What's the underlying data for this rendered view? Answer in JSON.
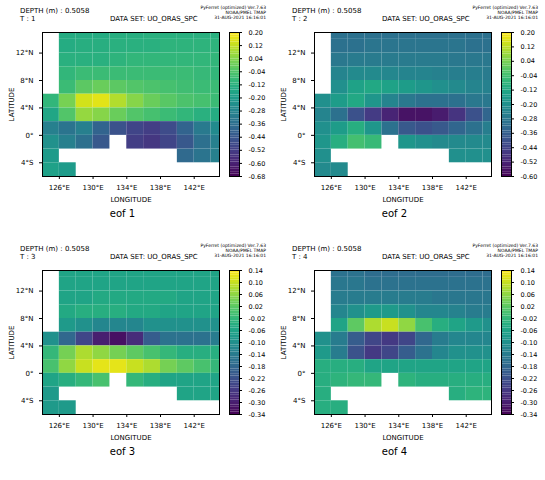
{
  "chart_data": [
    {
      "type": "heatmap",
      "title": "eof 1",
      "color": "viridis",
      "annotations": [
        "DEPTH (m) : 0.5058",
        "T : 1",
        "DATA SET: UO_ORAS_SPC",
        "PyFerret (optimized) Ver.7.63",
        "NOAA/PMEL TMAP",
        "31-AUG-2021 16:16:01"
      ],
      "xlabel": "LONGITUDE",
      "ylabel": "LATITUDE",
      "xlim": [
        124,
        145
      ],
      "ylim": [
        -6,
        15
      ],
      "xticks": [
        {
          "value": 126,
          "label": "126°E"
        },
        {
          "value": 130,
          "label": "130°E"
        },
        {
          "value": 134,
          "label": "134°E"
        },
        {
          "value": 138,
          "label": "138°E"
        },
        {
          "value": 142,
          "label": "142°E"
        }
      ],
      "yticks": [
        {
          "value": -4,
          "label": "4°S"
        },
        {
          "value": 0,
          "label": "0°"
        },
        {
          "value": 4,
          "label": "4°N"
        },
        {
          "value": 8,
          "label": "8°N"
        },
        {
          "value": 12,
          "label": "12°N"
        }
      ],
      "x": [
        125,
        127,
        129,
        131,
        133,
        135,
        137,
        139,
        141,
        143,
        145
      ],
      "y": [
        15,
        13,
        11,
        9,
        7,
        5,
        3,
        1,
        -1,
        -3,
        -5
      ],
      "values": [
        [
          null,
          -0.14,
          -0.14,
          -0.14,
          -0.13,
          -0.13,
          -0.12,
          -0.12,
          -0.12,
          -0.12,
          -0.12
        ],
        [
          null,
          -0.14,
          -0.13,
          -0.13,
          -0.12,
          -0.12,
          -0.12,
          -0.11,
          -0.11,
          -0.11,
          -0.11
        ],
        [
          null,
          -0.12,
          -0.12,
          -0.12,
          -0.11,
          -0.1,
          -0.1,
          -0.1,
          -0.1,
          -0.1,
          -0.1
        ],
        [
          null,
          -0.1,
          -0.08,
          -0.08,
          -0.08,
          -0.08,
          -0.08,
          -0.08,
          -0.08,
          -0.09,
          -0.1
        ],
        [
          null,
          -0.08,
          -0.02,
          0.0,
          -0.02,
          -0.04,
          -0.05,
          -0.06,
          -0.07,
          -0.08,
          -0.08
        ],
        [
          -0.1,
          0.02,
          0.14,
          0.16,
          0.1,
          0.04,
          0.0,
          -0.03,
          -0.05,
          -0.06,
          -0.08
        ],
        [
          -0.16,
          -0.04,
          0.06,
          0.04,
          0.0,
          -0.04,
          -0.06,
          -0.08,
          -0.1,
          -0.12,
          -0.14
        ],
        [
          -0.3,
          -0.34,
          -0.3,
          -0.4,
          -0.46,
          -0.5,
          -0.52,
          -0.48,
          -0.4,
          -0.32,
          -0.26
        ],
        [
          -0.24,
          -0.3,
          -0.36,
          -0.44,
          null,
          -0.52,
          -0.54,
          -0.5,
          -0.44,
          -0.36,
          -0.3
        ],
        [
          -0.2,
          null,
          null,
          null,
          null,
          null,
          null,
          null,
          -0.38,
          -0.34,
          -0.3
        ],
        [
          -0.18,
          -0.2,
          null,
          null,
          null,
          null,
          null,
          null,
          null,
          null,
          null
        ]
      ],
      "colorbar": {
        "range": [
          -0.68,
          0.2
        ],
        "ticks": [
          {
            "value": 0.2,
            "label": "0.20"
          },
          {
            "value": 0.12,
            "label": "0.12"
          },
          {
            "value": 0.04,
            "label": "0.04"
          },
          {
            "value": -0.04,
            "label": "-0.04"
          },
          {
            "value": -0.12,
            "label": "-0.12"
          },
          {
            "value": -0.2,
            "label": "-0.20"
          },
          {
            "value": -0.28,
            "label": "-0.28"
          },
          {
            "value": -0.36,
            "label": "-0.36"
          },
          {
            "value": -0.44,
            "label": "-0.44"
          },
          {
            "value": -0.52,
            "label": "-0.52"
          },
          {
            "value": -0.6,
            "label": "-0.60"
          },
          {
            "value": -0.68,
            "label": "-0.68"
          }
        ]
      }
    },
    {
      "type": "heatmap",
      "title": "eof 2",
      "color": "viridis",
      "annotations": [
        "DEPTH (m) : 0.5058",
        "T : 2",
        "DATA SET: UO_ORAS_SPC",
        "PyFerret (optimized) Ver.7.63",
        "NOAA/PMEL TMAP",
        "31-AUG-2021 16:16:01"
      ],
      "xlabel": "LONGITUDE",
      "ylabel": "LATITUDE",
      "xlim": [
        124,
        145
      ],
      "ylim": [
        -6,
        15
      ],
      "xticks": [
        {
          "value": 126,
          "label": "126°E"
        },
        {
          "value": 130,
          "label": "130°E"
        },
        {
          "value": 134,
          "label": "134°E"
        },
        {
          "value": 138,
          "label": "138°E"
        },
        {
          "value": 142,
          "label": "142°E"
        }
      ],
      "yticks": [
        {
          "value": -4,
          "label": "4°S"
        },
        {
          "value": 0,
          "label": "0°"
        },
        {
          "value": 4,
          "label": "4°N"
        },
        {
          "value": 8,
          "label": "8°N"
        },
        {
          "value": 12,
          "label": "12°N"
        }
      ],
      "x": [
        125,
        127,
        129,
        131,
        133,
        135,
        137,
        139,
        141,
        143,
        145
      ],
      "y": [
        15,
        13,
        11,
        9,
        7,
        5,
        3,
        1,
        -1,
        -3,
        -5
      ],
      "values": [
        [
          null,
          -0.3,
          -0.3,
          -0.3,
          -0.3,
          -0.3,
          -0.3,
          -0.3,
          -0.3,
          -0.3,
          -0.3
        ],
        [
          null,
          -0.3,
          -0.3,
          -0.29,
          -0.29,
          -0.29,
          -0.29,
          -0.29,
          -0.29,
          -0.3,
          -0.3
        ],
        [
          null,
          -0.28,
          -0.27,
          -0.27,
          -0.27,
          -0.27,
          -0.27,
          -0.27,
          -0.28,
          -0.28,
          -0.28
        ],
        [
          null,
          -0.24,
          -0.22,
          -0.22,
          -0.23,
          -0.24,
          -0.24,
          -0.25,
          -0.26,
          -0.26,
          -0.27
        ],
        [
          null,
          -0.2,
          -0.14,
          -0.12,
          -0.14,
          -0.16,
          -0.18,
          -0.2,
          -0.22,
          -0.24,
          -0.25
        ],
        [
          -0.2,
          -0.16,
          -0.12,
          -0.18,
          -0.24,
          -0.28,
          -0.3,
          -0.3,
          -0.3,
          -0.28,
          -0.28
        ],
        [
          -0.24,
          -0.3,
          -0.4,
          -0.46,
          -0.52,
          -0.56,
          -0.56,
          -0.54,
          -0.48,
          -0.4,
          -0.34
        ],
        [
          -0.2,
          -0.16,
          -0.1,
          -0.18,
          -0.3,
          -0.38,
          -0.4,
          -0.38,
          -0.34,
          -0.3,
          -0.26
        ],
        [
          -0.18,
          -0.1,
          -0.04,
          -0.06,
          null,
          -0.18,
          -0.2,
          -0.22,
          -0.22,
          -0.22,
          -0.22
        ],
        [
          -0.2,
          null,
          null,
          null,
          null,
          null,
          null,
          null,
          -0.2,
          -0.2,
          -0.2
        ],
        [
          -0.22,
          -0.22,
          null,
          null,
          null,
          null,
          null,
          null,
          null,
          null,
          null
        ]
      ],
      "colorbar": {
        "range": [
          -0.6,
          0.2
        ],
        "ticks": [
          {
            "value": 0.2,
            "label": "0.20"
          },
          {
            "value": 0.12,
            "label": "0.12"
          },
          {
            "value": 0.04,
            "label": "0.04"
          },
          {
            "value": -0.04,
            "label": "-0.04"
          },
          {
            "value": -0.12,
            "label": "-0.12"
          },
          {
            "value": -0.2,
            "label": "-0.20"
          },
          {
            "value": -0.28,
            "label": "-0.28"
          },
          {
            "value": -0.36,
            "label": "-0.36"
          },
          {
            "value": -0.44,
            "label": "-0.44"
          },
          {
            "value": -0.52,
            "label": "-0.52"
          },
          {
            "value": -0.6,
            "label": "-0.60"
          }
        ]
      }
    },
    {
      "type": "heatmap",
      "title": "eof 3",
      "color": "viridis",
      "annotations": [
        "DEPTH (m) : 0.5058",
        "T : 3",
        "DATA SET: UO_ORAS_SPC",
        "PyFerret (optimized) Ver.7.63",
        "NOAA/PMEL TMAP",
        "31-AUG-2021 16:16:01"
      ],
      "xlabel": "LONGITUDE",
      "ylabel": "LATITUDE",
      "xlim": [
        124,
        145
      ],
      "ylim": [
        -6,
        15
      ],
      "xticks": [
        {
          "value": 126,
          "label": "126°E"
        },
        {
          "value": 130,
          "label": "130°E"
        },
        {
          "value": 134,
          "label": "134°E"
        },
        {
          "value": 138,
          "label": "138°E"
        },
        {
          "value": 142,
          "label": "142°E"
        }
      ],
      "yticks": [
        {
          "value": -4,
          "label": "4°S"
        },
        {
          "value": 0,
          "label": "0°"
        },
        {
          "value": 4,
          "label": "4°N"
        },
        {
          "value": 8,
          "label": "8°N"
        },
        {
          "value": 12,
          "label": "12°N"
        }
      ],
      "x": [
        125,
        127,
        129,
        131,
        133,
        135,
        137,
        139,
        141,
        143,
        145
      ],
      "y": [
        15,
        13,
        11,
        9,
        7,
        5,
        3,
        1,
        -1,
        -3,
        -5
      ],
      "values": [
        [
          null,
          -0.06,
          -0.06,
          -0.06,
          -0.06,
          -0.06,
          -0.06,
          -0.06,
          -0.06,
          -0.06,
          -0.06
        ],
        [
          null,
          -0.06,
          -0.06,
          -0.06,
          -0.06,
          -0.06,
          -0.06,
          -0.06,
          -0.06,
          -0.06,
          -0.06
        ],
        [
          null,
          -0.06,
          -0.06,
          -0.05,
          -0.05,
          -0.05,
          -0.05,
          -0.05,
          -0.06,
          -0.06,
          -0.06
        ],
        [
          null,
          -0.05,
          -0.04,
          -0.04,
          -0.04,
          -0.05,
          -0.05,
          -0.06,
          -0.06,
          -0.06,
          -0.06
        ],
        [
          null,
          -0.08,
          -0.1,
          -0.12,
          -0.12,
          -0.12,
          -0.1,
          -0.1,
          -0.1,
          -0.1,
          -0.1
        ],
        [
          -0.1,
          -0.18,
          -0.24,
          -0.3,
          -0.32,
          -0.28,
          -0.2,
          -0.16,
          -0.16,
          -0.16,
          -0.14
        ],
        [
          -0.02,
          0.04,
          0.08,
          0.06,
          0.04,
          0.02,
          0.0,
          -0.02,
          -0.04,
          -0.04,
          -0.04
        ],
        [
          0.0,
          0.06,
          0.1,
          0.12,
          0.12,
          0.1,
          0.08,
          0.04,
          0.02,
          0.0,
          -0.02
        ],
        [
          -0.06,
          -0.04,
          -0.02,
          0.0,
          null,
          -0.02,
          -0.04,
          -0.06,
          -0.06,
          -0.06,
          -0.06
        ],
        [
          -0.08,
          null,
          null,
          null,
          null,
          null,
          null,
          null,
          -0.06,
          -0.06,
          -0.06
        ],
        [
          -0.08,
          -0.08,
          null,
          null,
          null,
          null,
          null,
          null,
          null,
          null,
          null
        ]
      ],
      "colorbar": {
        "range": [
          -0.34,
          0.14
        ],
        "ticks": [
          {
            "value": 0.14,
            "label": "0.14"
          },
          {
            "value": 0.1,
            "label": "0.10"
          },
          {
            "value": 0.06,
            "label": "0.06"
          },
          {
            "value": 0.02,
            "label": "0.02"
          },
          {
            "value": -0.02,
            "label": "-0.02"
          },
          {
            "value": -0.06,
            "label": "-0.06"
          },
          {
            "value": -0.1,
            "label": "-0.10"
          },
          {
            "value": -0.14,
            "label": "-0.14"
          },
          {
            "value": -0.18,
            "label": "-0.18"
          },
          {
            "value": -0.22,
            "label": "-0.22"
          },
          {
            "value": -0.26,
            "label": "-0.26"
          },
          {
            "value": -0.3,
            "label": "-0.30"
          },
          {
            "value": -0.34,
            "label": "-0.34"
          }
        ]
      }
    },
    {
      "type": "heatmap",
      "title": "eof 4",
      "color": "viridis",
      "annotations": [
        "DEPTH (m) : 0.5058",
        "T : 4",
        "DATA SET: UO_ORAS_SPC",
        "PyFerret (optimized) Ver.7.63",
        "NOAA/PMEL TMAP",
        "31-AUG-2021 16:16:01"
      ],
      "xlabel": "LONGITUDE",
      "ylabel": "LATITUDE",
      "xlim": [
        124,
        145
      ],
      "ylim": [
        -6,
        15
      ],
      "xticks": [
        {
          "value": 126,
          "label": "126°E"
        },
        {
          "value": 130,
          "label": "130°E"
        },
        {
          "value": 134,
          "label": "134°E"
        },
        {
          "value": 138,
          "label": "138°E"
        },
        {
          "value": 142,
          "label": "142°E"
        }
      ],
      "yticks": [
        {
          "value": -4,
          "label": "4°S"
        },
        {
          "value": 0,
          "label": "0°"
        },
        {
          "value": 4,
          "label": "4°N"
        },
        {
          "value": 8,
          "label": "8°N"
        },
        {
          "value": 12,
          "label": "12°N"
        }
      ],
      "x": [
        125,
        127,
        129,
        131,
        133,
        135,
        137,
        139,
        141,
        143,
        145
      ],
      "y": [
        15,
        13,
        11,
        9,
        7,
        5,
        3,
        1,
        -1,
        -3,
        -5
      ],
      "values": [
        [
          null,
          -0.16,
          -0.16,
          -0.17,
          -0.17,
          -0.17,
          -0.17,
          -0.17,
          -0.17,
          -0.17,
          -0.17
        ],
        [
          null,
          -0.15,
          -0.15,
          -0.16,
          -0.16,
          -0.16,
          -0.16,
          -0.16,
          -0.16,
          -0.16,
          -0.16
        ],
        [
          null,
          -0.14,
          -0.14,
          -0.14,
          -0.14,
          -0.14,
          -0.14,
          -0.15,
          -0.15,
          -0.15,
          -0.15
        ],
        [
          null,
          -0.12,
          -0.1,
          -0.08,
          -0.08,
          -0.1,
          -0.12,
          -0.12,
          -0.13,
          -0.14,
          -0.14
        ],
        [
          null,
          -0.06,
          0.02,
          0.08,
          0.1,
          0.06,
          0.0,
          -0.04,
          -0.06,
          -0.08,
          -0.1
        ],
        [
          -0.1,
          -0.14,
          -0.2,
          -0.24,
          -0.26,
          -0.24,
          -0.18,
          -0.14,
          -0.12,
          -0.12,
          -0.12
        ],
        [
          -0.08,
          -0.14,
          -0.22,
          -0.26,
          -0.24,
          -0.2,
          -0.16,
          -0.12,
          -0.1,
          -0.1,
          -0.1
        ],
        [
          -0.04,
          -0.04,
          -0.04,
          -0.06,
          -0.06,
          -0.06,
          -0.06,
          -0.06,
          -0.06,
          -0.06,
          -0.06
        ],
        [
          -0.04,
          -0.03,
          -0.02,
          -0.02,
          null,
          -0.03,
          -0.04,
          -0.04,
          -0.04,
          -0.04,
          -0.04
        ],
        [
          -0.04,
          null,
          null,
          null,
          null,
          null,
          null,
          null,
          -0.04,
          -0.03,
          -0.03
        ],
        [
          -0.04,
          -0.04,
          null,
          null,
          null,
          null,
          null,
          null,
          null,
          null,
          null
        ]
      ],
      "colorbar": {
        "range": [
          -0.34,
          0.14
        ],
        "ticks": [
          {
            "value": 0.14,
            "label": "0.14"
          },
          {
            "value": 0.1,
            "label": "0.10"
          },
          {
            "value": 0.06,
            "label": "0.06"
          },
          {
            "value": 0.02,
            "label": "0.02"
          },
          {
            "value": -0.02,
            "label": "-0.02"
          },
          {
            "value": -0.06,
            "label": "-0.06"
          },
          {
            "value": -0.1,
            "label": "-0.10"
          },
          {
            "value": -0.14,
            "label": "-0.14"
          },
          {
            "value": -0.18,
            "label": "-0.18"
          },
          {
            "value": -0.22,
            "label": "-0.22"
          },
          {
            "value": -0.26,
            "label": "-0.26"
          },
          {
            "value": -0.3,
            "label": "-0.30"
          },
          {
            "value": -0.34,
            "label": "-0.34"
          }
        ]
      }
    }
  ]
}
